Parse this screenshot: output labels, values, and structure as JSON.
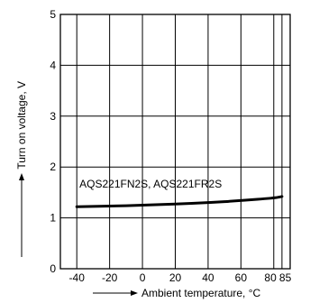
{
  "chart_data": {
    "type": "line",
    "xlabel": "Ambient temperature, °C",
    "ylabel": "Turn on voltage, V",
    "xlim": [
      -50,
      90
    ],
    "ylim": [
      0,
      5
    ],
    "x_ticks": [
      -40,
      -20,
      0,
      20,
      40,
      60,
      80,
      85
    ],
    "y_ticks": [
      0,
      1,
      2,
      3,
      4,
      5
    ],
    "grid": true,
    "legend": "none",
    "annotations": [
      {
        "text": "AQS221FN2S, AQS221FR2S",
        "x": 5,
        "y": 1.6
      }
    ],
    "series": [
      {
        "x": [
          -40,
          -20,
          0,
          20,
          40,
          60,
          80,
          85
        ],
        "y": [
          1.22,
          1.23,
          1.25,
          1.27,
          1.3,
          1.34,
          1.39,
          1.42
        ]
      }
    ]
  }
}
